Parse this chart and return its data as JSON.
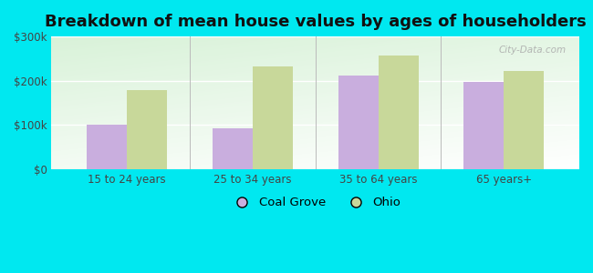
{
  "title": "Breakdown of mean house values by ages of householders",
  "categories": [
    "15 to 24 years",
    "25 to 34 years",
    "35 to 64 years",
    "65 years+"
  ],
  "coal_grove_values": [
    100000,
    92000,
    212000,
    197000
  ],
  "ohio_values": [
    178000,
    232000,
    258000,
    222000
  ],
  "coal_grove_color": "#c9aede",
  "ohio_color": "#c8d89a",
  "background_color": "#00e8f0",
  "ylim": [
    0,
    300000
  ],
  "yticks": [
    0,
    100000,
    200000,
    300000
  ],
  "legend_labels": [
    "Coal Grove",
    "Ohio"
  ],
  "bar_width": 0.32,
  "title_fontsize": 13,
  "watermark": "City-Data.com"
}
